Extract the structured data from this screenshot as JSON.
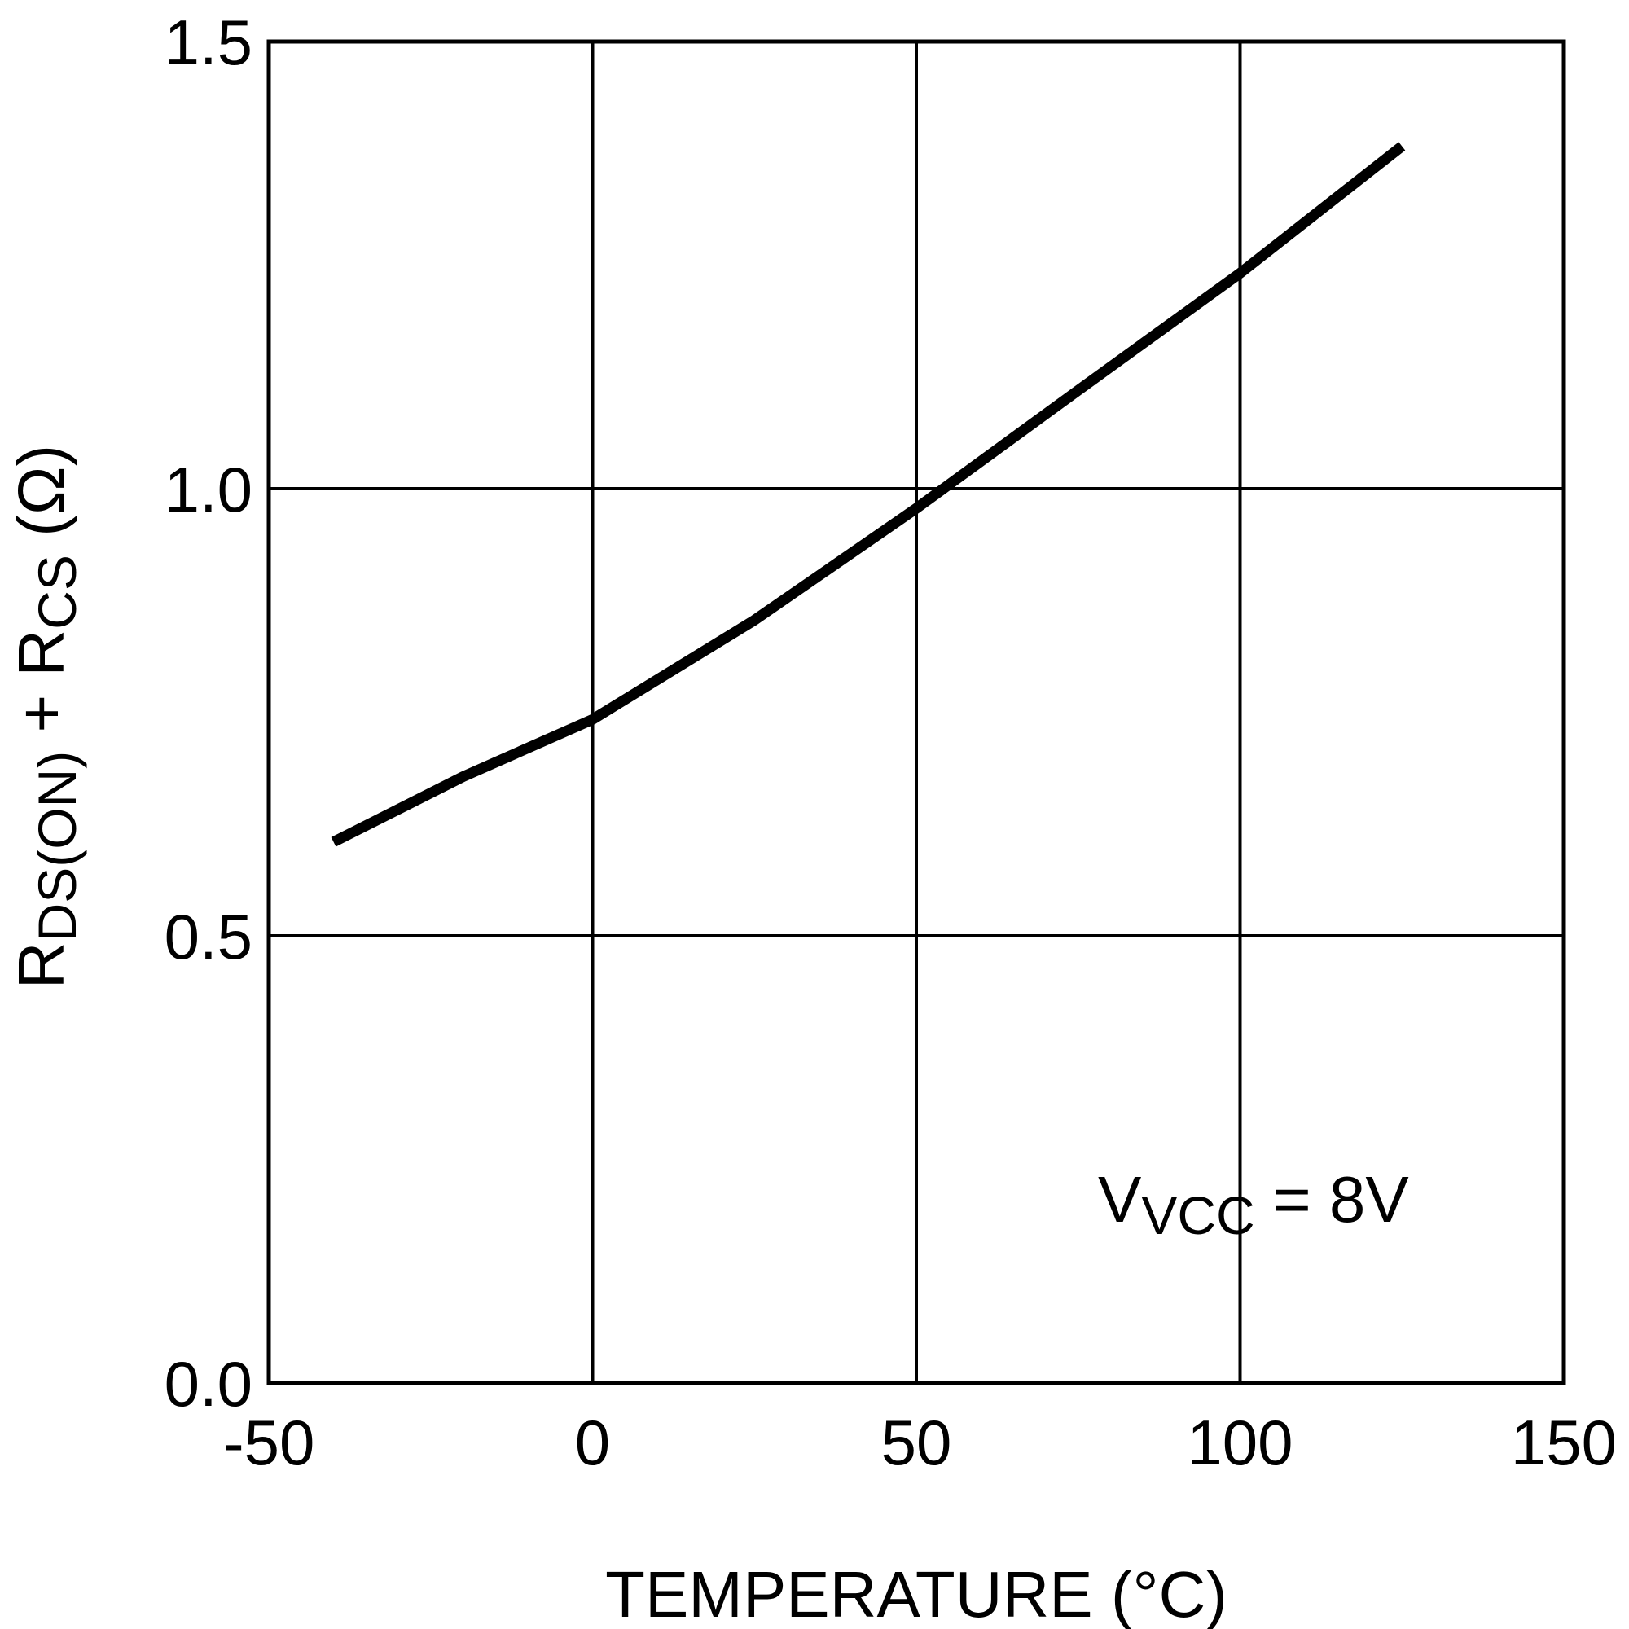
{
  "chart_data": {
    "type": "line",
    "xlabel": "TEMPERATURE (°C)",
    "ylabel_parts": [
      {
        "text": "R"
      },
      {
        "text": "DS(ON)",
        "sub": true
      },
      {
        "text": " + R"
      },
      {
        "text": "CS",
        "sub": true
      },
      {
        "text": " (Ω)"
      }
    ],
    "annotation_parts": [
      {
        "text": "V"
      },
      {
        "text": "VCC",
        "sub": true
      },
      {
        "text": " = 8V"
      }
    ],
    "x": [
      -40,
      -20,
      0,
      25,
      50,
      75,
      100,
      125
    ],
    "series": [
      {
        "color": "#000000",
        "values": [
          0.605,
          0.678,
          0.742,
          0.853,
          0.978,
          1.11,
          1.241,
          1.383
        ]
      }
    ],
    "xlim": [
      -50,
      150
    ],
    "xticks": [
      -50,
      0,
      50,
      100,
      150
    ],
    "ylim": [
      0,
      1.5
    ],
    "yticks": [
      {
        "value": 0,
        "label": "0.0"
      },
      0.5,
      {
        "value": 1,
        "label": "1.0"
      },
      1.5
    ],
    "grid": true
  }
}
